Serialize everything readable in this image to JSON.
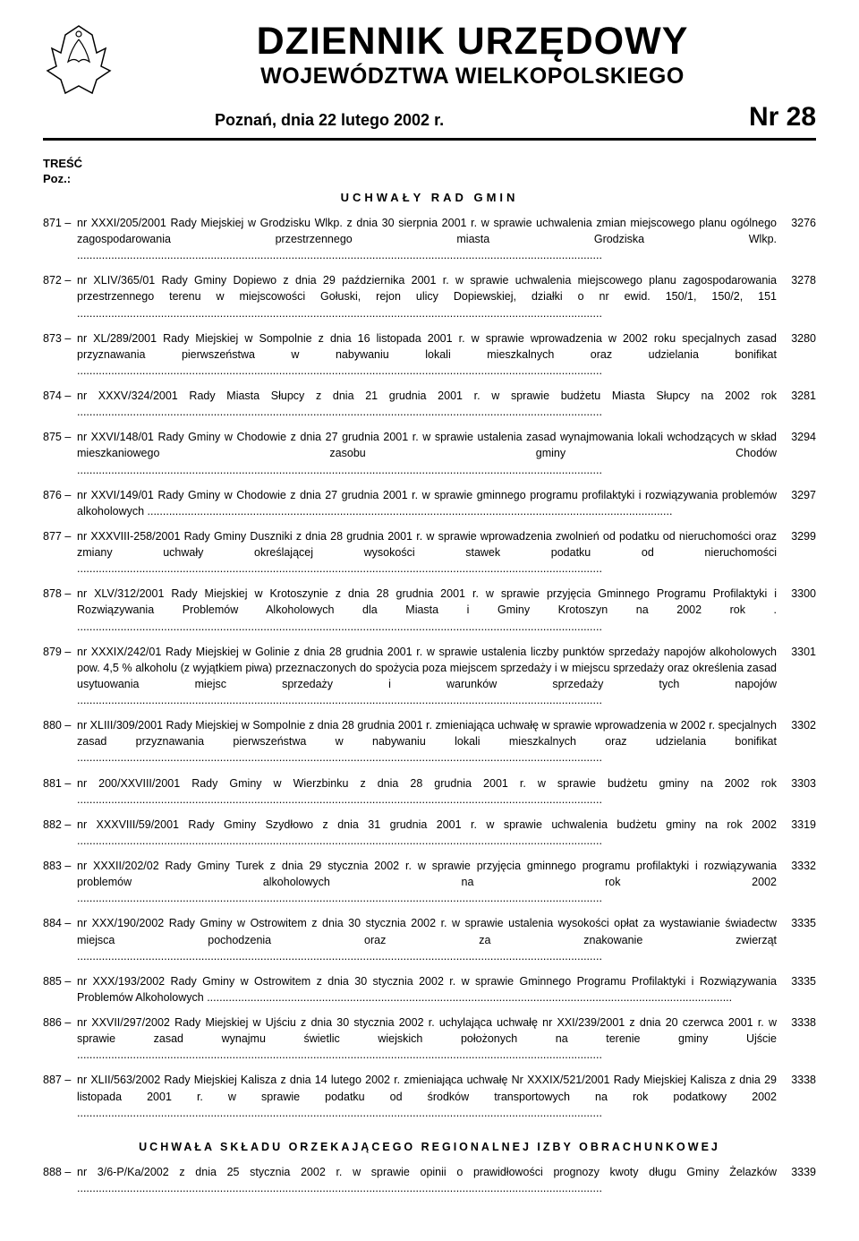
{
  "header": {
    "title_main": "DZIENNIK URZĘDOWY",
    "title_sub": "WOJEWÓDZTWA WIELKOPOLSKIEGO",
    "place_date": "Poznań, dnia 22 lutego 2002 r.",
    "issue": "Nr 28"
  },
  "tresc_label": "TREŚĆ",
  "poz_label": "Poz.:",
  "section_heading": "UCHWAŁY RAD GMIN",
  "entries": [
    {
      "num": "871",
      "text": "nr XXXI/205/2001 Rady Miejskiej w Grodzisku Wlkp. z dnia 30 sierpnia 2001 r. w sprawie uchwalenia zmian miejscowego planu ogólnego zagospodarowania przestrzennego miasta Grodziska Wlkp.",
      "page": "3276"
    },
    {
      "num": "872",
      "text": "nr XLIV/365/01 Rady Gminy Dopiewo z dnia 29 października 2001 r. w sprawie uchwalenia miejscowego planu zagospodarowania przestrzennego terenu w miejscowości Gołuski, rejon ulicy Dopiewskiej, działki o nr ewid. 150/1, 150/2, 151",
      "page": "3278"
    },
    {
      "num": "873",
      "text": "nr XL/289/2001 Rady Miejskiej w Sompolnie z dnia 16 listopada 2001 r. w sprawie wprowadzenia w 2002 roku specjalnych zasad przyznawania pierwszeństwa w nabywaniu lokali mieszkalnych oraz udzielania bonifikat",
      "page": "3280"
    },
    {
      "num": "874",
      "text": "nr XXXV/324/2001 Rady Miasta Słupcy z dnia 21 grudnia 2001 r. w sprawie budżetu Miasta Słupcy na 2002 rok",
      "page": "3281"
    },
    {
      "num": "875",
      "text": "nr XXVI/148/01 Rady Gminy w Chodowie z dnia 27 grudnia 2001 r. w sprawie ustalenia zasad wynajmowania lokali wchodzących w skład mieszkaniowego zasobu gminy Chodów",
      "page": "3294"
    },
    {
      "num": "876",
      "text": "nr XXVI/149/01 Rady Gminy w Chodowie z dnia 27 grudnia 2001 r. w sprawie gminnego programu profilaktyki i rozwiązywania problemów alkoholowych",
      "page": "3297"
    },
    {
      "num": "877",
      "text": "nr XXXVIII-258/2001 Rady Gminy Duszniki z dnia 28 grudnia 2001 r. w sprawie wprowadzenia zwolnień od podatku od nieruchomości oraz zmiany uchwały określającej wysokości stawek podatku od nieruchomości",
      "page": "3299"
    },
    {
      "num": "878",
      "text": "nr XLV/312/2001 Rady Miejskiej w Krotoszynie z dnia 28 grudnia 2001 r. w sprawie przyjęcia Gminnego Programu Profilaktyki i Rozwiązywania Problemów Alkoholowych dla Miasta i Gminy Krotoszyn na 2002 rok .",
      "page": "3300"
    },
    {
      "num": "879",
      "text": "nr XXXIX/242/01 Rady Miejskiej w Golinie z dnia 28 grudnia 2001 r. w sprawie ustalenia liczby punktów sprzedaży napojów alkoholowych pow. 4,5 % alkoholu (z wyjątkiem piwa) przeznaczonych do spożycia poza miejscem sprzedaży i w miejscu sprzedaży oraz określenia zasad usytuowania miejsc sprzedaży i warunków sprzedaży tych napojów",
      "page": "3301"
    },
    {
      "num": "880",
      "text": "nr XLIII/309/2001 Rady Miejskiej w Sompolnie z dnia 28 grudnia 2001 r. zmieniająca uchwałę w sprawie wprowadzenia w 2002 r. specjalnych zasad przyznawania pierwszeństwa w nabywaniu lokali mieszkalnych oraz udzielania bonifikat",
      "page": "3302"
    },
    {
      "num": "881",
      "text": "nr 200/XXVIII/2001 Rady Gminy w Wierzbinku z dnia 28 grudnia 2001 r. w sprawie budżetu gminy na 2002 rok",
      "page": "3303"
    },
    {
      "num": "882",
      "text": "nr XXXVIII/59/2001 Rady Gminy Szydłowo z dnia 31 grudnia 2001 r. w sprawie uchwalenia budżetu gminy na rok 2002",
      "page": "3319"
    },
    {
      "num": "883",
      "text": "nr XXXII/202/02 Rady Gminy Turek z dnia 29 stycznia 2002 r. w sprawie przyjęcia gminnego programu profilaktyki i rozwiązywania problemów alkoholowych na rok 2002",
      "page": "3332"
    },
    {
      "num": "884",
      "text": "nr XXX/190/2002 Rady Gminy w Ostrowitem z dnia 30 stycznia 2002 r. w sprawie ustalenia wysokości opłat za wystawianie świadectw miejsca pochodzenia oraz za znakowanie zwierząt",
      "page": "3335"
    },
    {
      "num": "885",
      "text": "nr XXX/193/2002 Rady Gminy w Ostrowitem z dnia 30 stycznia 2002 r. w sprawie Gminnego Programu Profilaktyki i Rozwiązywania Problemów Alkoholowych",
      "page": "3335"
    },
    {
      "num": "886",
      "text": "nr XXVII/297/2002 Rady Miejskiej w Ujściu z dnia 30 stycznia 2002 r. uchylająca uchwałę nr XXI/239/2001 z dnia 20 czerwca 2001 r. w sprawie zasad wynajmu świetlic wiejskich położonych na terenie gminy Ujście",
      "page": "3338"
    },
    {
      "num": "887",
      "text": "nr XLII/563/2002 Rady Miejskiej Kalisza z dnia 14 lutego 2002 r. zmieniająca uchwałę Nr XXXIX/521/2001 Rady Miejskiej Kalisza z dnia 29 listopada 2001 r. w sprawie podatku od środków transportowych na rok podatkowy 2002",
      "page": "3338"
    }
  ],
  "bottom_heading": "UCHWAŁA SKŁADU ORZEKAJĄCEGO REGIONALNEJ IZBY OBRACHUNKOWEJ",
  "bottom_entries": [
    {
      "num": "888",
      "text": "nr 3/6-P/Ka/2002 z dnia 25 stycznia 2002 r. w sprawie opinii o prawidłowości prognozy kwoty długu Gminy Żelazków",
      "page": "3339"
    }
  ],
  "dots": " ........................................................................................................................................................................."
}
